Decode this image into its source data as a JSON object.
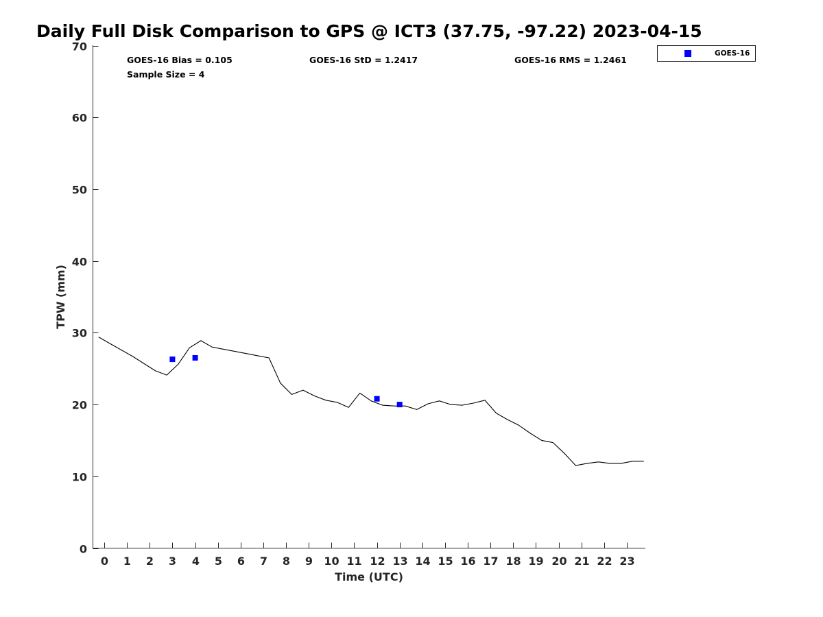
{
  "chart_data": {
    "type": "scatter",
    "title": "Daily Full Disk Comparison to GPS @ ICT3 (37.75, -97.22) 2023-04-15",
    "xlabel": "Time (UTC)",
    "ylabel": "TPW (mm)",
    "xlim": [
      -0.5,
      23.8
    ],
    "ylim": [
      0,
      70
    ],
    "xticks": [
      "0",
      "1",
      "2",
      "3",
      "4",
      "5",
      "6",
      "7",
      "8",
      "9",
      "10",
      "11",
      "12",
      "13",
      "14",
      "15",
      "16",
      "17",
      "18",
      "19",
      "20",
      "21",
      "22",
      "23"
    ],
    "yticks": [
      "0",
      "10",
      "20",
      "30",
      "40",
      "50",
      "60",
      "70"
    ],
    "grid": false,
    "legend_position": "top-right (outside plot)",
    "stats": {
      "bias": "GOES-16 Bias = 0.105",
      "std": "GOES-16 StD = 1.2417",
      "rms": "GOES-16 RMS = 1.2461",
      "sample_size": "Sample Size = 4"
    },
    "series": [
      {
        "type": "scatter",
        "name": "GOES-16",
        "color": "#0000ff",
        "marker": "square",
        "x": [
          3,
          4,
          12,
          13
        ],
        "y": [
          26.3,
          26.5,
          20.8,
          20.0
        ]
      },
      {
        "type": "line",
        "color": "#000000",
        "x": [
          -0.25,
          0.25,
          0.75,
          1.25,
          1.75,
          2.25,
          2.75,
          3.25,
          3.75,
          4.25,
          4.75,
          5.25,
          5.75,
          6.25,
          6.75,
          7.25,
          7.75,
          8.25,
          8.75,
          9.25,
          9.75,
          10.25,
          10.75,
          11.25,
          11.75,
          12.25,
          12.75,
          13.25,
          13.75,
          14.25,
          14.75,
          15.25,
          15.75,
          16.25,
          16.75,
          17.25,
          17.75,
          18.25,
          18.75,
          19.25,
          19.75,
          20.25,
          20.75,
          21.25,
          21.75,
          22.25,
          22.75,
          23.25,
          23.75
        ],
        "y": [
          29.4,
          28.5,
          27.6,
          26.7,
          25.7,
          24.7,
          24.1,
          25.6,
          27.9,
          28.9,
          28.0,
          27.7,
          27.4,
          27.1,
          26.8,
          26.5,
          23.0,
          21.4,
          22.0,
          21.2,
          20.6,
          20.3,
          19.6,
          21.6,
          20.5,
          19.9,
          19.8,
          19.8,
          19.3,
          20.1,
          20.5,
          20.0,
          19.9,
          20.2,
          20.6,
          18.8,
          17.9,
          17.1,
          16.0,
          15.0,
          14.7,
          13.2,
          11.5,
          11.8,
          12.0,
          11.8,
          11.8,
          12.1,
          12.1
        ]
      }
    ]
  }
}
